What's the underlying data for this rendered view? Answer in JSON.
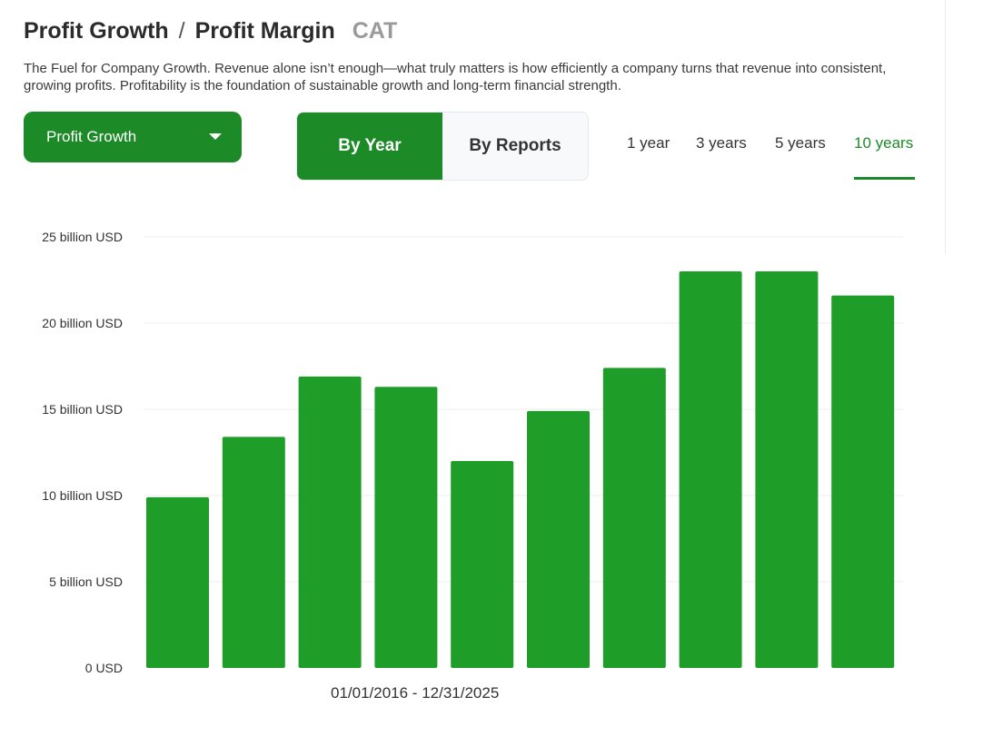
{
  "header": {
    "title_part1": "Profit Growth",
    "title_sep": "/",
    "title_part2": "Profit Margin",
    "ticker": "CAT",
    "description": "The Fuel for Company Growth. Revenue alone isn’t enough—what truly matters is how efficiently a company turns that revenue into consistent, growing profits. Profitability is the foundation of sustainable growth and long-term financial strength."
  },
  "controls": {
    "metric_selected": "Profit Growth",
    "mode_tabs": [
      {
        "label": "By Year",
        "active": true
      },
      {
        "label": "By Reports",
        "active": false
      }
    ],
    "period_tabs": [
      {
        "label": "1 year",
        "active": false
      },
      {
        "label": "3 years",
        "active": false
      },
      {
        "label": "5 years",
        "active": false
      },
      {
        "label": "10 years",
        "active": true
      }
    ]
  },
  "colors": {
    "accent": "#1c8a27",
    "bar": "#1e9e29",
    "grid": "#ececec"
  },
  "chart_data": {
    "type": "bar",
    "values": [
      9.9,
      13.4,
      16.9,
      16.3,
      12.0,
      14.9,
      17.4,
      23.0,
      23.0,
      21.6
    ],
    "unit": "billion USD",
    "ylim": [
      0,
      25
    ],
    "yticks": [
      0,
      5,
      10,
      15,
      20,
      25
    ],
    "ytick_labels": [
      "0 USD",
      "5 billion USD",
      "10 billion USD",
      "15 billion USD",
      "20 billion USD",
      "25 billion USD"
    ],
    "grid": true,
    "range_label": "01/01/2016 - 12/31/2025"
  }
}
